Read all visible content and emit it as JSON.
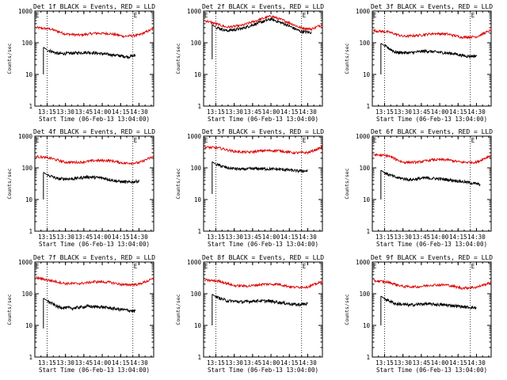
{
  "chart_data": {
    "type": "line",
    "layout": "3x3 grid",
    "shared": {
      "xlabel": "Start Time (06-Feb-13 13:04:00)",
      "ylabel": "Counts/sec",
      "yscale": "log",
      "ylim": [
        1,
        1000
      ],
      "yticks": [
        "1",
        "10",
        "100",
        "1000"
      ],
      "xlim": [
        "13:05",
        "14:42"
      ],
      "xticks": [
        "13:15",
        "13:30",
        "13:45",
        "14:00",
        "14:15",
        "14:30"
      ],
      "vertical_lines": [
        "13:15",
        "14:25"
      ],
      "marker_text": "E",
      "marker_time": "14:25",
      "series_colors": {
        "events": "#000000",
        "lld": "#dd0000"
      }
    },
    "panels": [
      {
        "title": "Det 1f BLACK = Events, RED = LLD",
        "lld": [
          [
            13.1,
            300
          ],
          [
            13.3,
            270
          ],
          [
            13.5,
            190
          ],
          [
            13.7,
            175
          ],
          [
            13.9,
            200
          ],
          [
            14.1,
            195
          ],
          [
            14.3,
            160
          ],
          [
            14.5,
            175
          ],
          [
            14.7,
            280
          ]
        ],
        "events": [
          [
            13.25,
            60
          ],
          [
            13.4,
            45
          ],
          [
            13.6,
            47
          ],
          [
            13.8,
            50
          ],
          [
            14.0,
            45
          ],
          [
            14.2,
            40
          ],
          [
            14.35,
            36
          ],
          [
            14.45,
            40
          ]
        ],
        "events_start": [
          13.2,
          10
        ]
      },
      {
        "title": "Det 2f BLACK = Events, RED = LLD",
        "lld": [
          [
            13.1,
            500
          ],
          [
            13.25,
            400
          ],
          [
            13.4,
            310
          ],
          [
            13.6,
            350
          ],
          [
            13.8,
            500
          ],
          [
            14.0,
            700
          ],
          [
            14.2,
            480
          ],
          [
            14.4,
            300
          ],
          [
            14.55,
            270
          ],
          [
            14.7,
            380
          ]
        ],
        "events": [
          [
            13.25,
            310
          ],
          [
            13.4,
            240
          ],
          [
            13.6,
            280
          ],
          [
            13.8,
            400
          ],
          [
            14.0,
            560
          ],
          [
            14.2,
            380
          ],
          [
            14.4,
            230
          ],
          [
            14.55,
            210
          ]
        ],
        "events_start": [
          13.2,
          30
        ]
      },
      {
        "title": "Det 3f BLACK = Events, RED = LLD",
        "lld": [
          [
            13.1,
            240
          ],
          [
            13.3,
            220
          ],
          [
            13.5,
            160
          ],
          [
            13.7,
            170
          ],
          [
            13.9,
            195
          ],
          [
            14.1,
            190
          ],
          [
            14.3,
            150
          ],
          [
            14.5,
            155
          ],
          [
            14.7,
            250
          ]
        ],
        "events": [
          [
            13.25,
            80
          ],
          [
            13.4,
            50
          ],
          [
            13.6,
            48
          ],
          [
            13.8,
            55
          ],
          [
            14.0,
            50
          ],
          [
            14.2,
            45
          ],
          [
            14.35,
            38
          ],
          [
            14.5,
            38
          ]
        ],
        "events_start": [
          13.2,
          10
        ]
      },
      {
        "title": "Det 4f BLACK = Events, RED = LLD",
        "lld": [
          [
            13.1,
            230
          ],
          [
            13.3,
            200
          ],
          [
            13.5,
            150
          ],
          [
            13.7,
            150
          ],
          [
            13.9,
            170
          ],
          [
            14.1,
            170
          ],
          [
            14.3,
            140
          ],
          [
            14.5,
            145
          ],
          [
            14.7,
            230
          ]
        ],
        "events": [
          [
            13.25,
            60
          ],
          [
            13.4,
            45
          ],
          [
            13.6,
            45
          ],
          [
            13.8,
            52
          ],
          [
            14.0,
            48
          ],
          [
            14.2,
            38
          ],
          [
            14.35,
            35
          ],
          [
            14.5,
            38
          ]
        ],
        "events_start": [
          13.2,
          10
        ]
      },
      {
        "title": "Det 5f BLACK = Events, RED = LLD",
        "lld": [
          [
            13.1,
            450
          ],
          [
            13.3,
            420
          ],
          [
            13.5,
            330
          ],
          [
            13.7,
            310
          ],
          [
            13.9,
            350
          ],
          [
            14.1,
            350
          ],
          [
            14.3,
            300
          ],
          [
            14.5,
            300
          ],
          [
            14.7,
            450
          ]
        ],
        "events": [
          [
            13.25,
            130
          ],
          [
            13.4,
            100
          ],
          [
            13.6,
            90
          ],
          [
            13.8,
            95
          ],
          [
            14.0,
            92
          ],
          [
            14.2,
            88
          ],
          [
            14.35,
            80
          ],
          [
            14.5,
            80
          ]
        ],
        "events_start": [
          13.2,
          15
        ]
      },
      {
        "title": "Det 6f BLACK = Events, RED = LLD",
        "lld": [
          [
            13.1,
            260
          ],
          [
            13.3,
            240
          ],
          [
            13.5,
            150
          ],
          [
            13.7,
            150
          ],
          [
            13.9,
            180
          ],
          [
            14.1,
            180
          ],
          [
            14.3,
            150
          ],
          [
            14.5,
            150
          ],
          [
            14.7,
            250
          ]
        ],
        "events": [
          [
            13.25,
            70
          ],
          [
            13.4,
            50
          ],
          [
            13.6,
            42
          ],
          [
            13.8,
            48
          ],
          [
            14.0,
            45
          ],
          [
            14.2,
            40
          ],
          [
            14.4,
            34
          ],
          [
            14.55,
            30
          ]
        ],
        "events_start": [
          13.2,
          10
        ]
      },
      {
        "title": "Det 7f BLACK = Events, RED = LLD",
        "lld": [
          [
            13.1,
            320
          ],
          [
            13.3,
            260
          ],
          [
            13.5,
            210
          ],
          [
            13.7,
            210
          ],
          [
            13.9,
            240
          ],
          [
            14.1,
            230
          ],
          [
            14.3,
            190
          ],
          [
            14.5,
            200
          ],
          [
            14.7,
            300
          ]
        ],
        "events": [
          [
            13.25,
            60
          ],
          [
            13.4,
            38
          ],
          [
            13.6,
            35
          ],
          [
            13.8,
            40
          ],
          [
            14.0,
            38
          ],
          [
            14.2,
            33
          ],
          [
            14.35,
            30
          ],
          [
            14.45,
            28
          ]
        ],
        "events_start": [
          13.2,
          8
        ]
      },
      {
        "title": "Det 8f BLACK = Events, RED = LLD",
        "lld": [
          [
            13.1,
            270
          ],
          [
            13.3,
            250
          ],
          [
            13.5,
            180
          ],
          [
            13.7,
            175
          ],
          [
            13.9,
            200
          ],
          [
            14.1,
            200
          ],
          [
            14.3,
            160
          ],
          [
            14.5,
            165
          ],
          [
            14.7,
            240
          ]
        ],
        "events": [
          [
            13.25,
            80
          ],
          [
            13.4,
            60
          ],
          [
            13.6,
            55
          ],
          [
            13.8,
            60
          ],
          [
            14.0,
            58
          ],
          [
            14.2,
            50
          ],
          [
            14.35,
            45
          ],
          [
            14.5,
            48
          ]
        ],
        "events_start": [
          13.2,
          10
        ]
      },
      {
        "title": "Det 9f BLACK = Events, RED = LLD",
        "lld": [
          [
            13.1,
            260
          ],
          [
            13.3,
            230
          ],
          [
            13.5,
            170
          ],
          [
            13.7,
            165
          ],
          [
            13.9,
            190
          ],
          [
            14.1,
            190
          ],
          [
            14.3,
            150
          ],
          [
            14.5,
            160
          ],
          [
            14.7,
            230
          ]
        ],
        "events": [
          [
            13.25,
            70
          ],
          [
            13.4,
            48
          ],
          [
            13.6,
            44
          ],
          [
            13.8,
            48
          ],
          [
            14.0,
            45
          ],
          [
            14.2,
            42
          ],
          [
            14.35,
            38
          ],
          [
            14.5,
            36
          ]
        ],
        "events_start": [
          13.2,
          10
        ]
      }
    ]
  }
}
